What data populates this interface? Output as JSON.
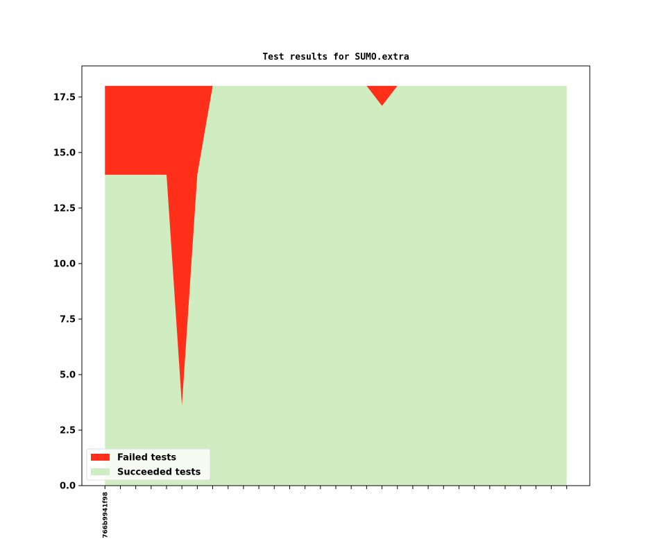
{
  "chart_data": {
    "type": "area",
    "title": "Test results for SUMO.extra",
    "xlabel": "",
    "ylabel": "",
    "ylim": [
      0,
      18.9
    ],
    "yticks": [
      0.0,
      2.5,
      5.0,
      7.5,
      10.0,
      12.5,
      15.0,
      17.5
    ],
    "ytick_labels": [
      "0.0",
      "2.5",
      "5.0",
      "7.5",
      "10.0",
      "12.5",
      "15.0",
      "17.5"
    ],
    "xlim": [
      -1.5,
      31.5
    ],
    "x": [
      0,
      1,
      2,
      3,
      4,
      5,
      6,
      7,
      8,
      9,
      10,
      11,
      12,
      13,
      14,
      15,
      16,
      17,
      18,
      19,
      20,
      21,
      22,
      23,
      24,
      25,
      26,
      27,
      28,
      29,
      30
    ],
    "xtick_labels": [
      "766b9941f98",
      "",
      "",
      "",
      "",
      "",
      "",
      "",
      "",
      "",
      "",
      "",
      "",
      "",
      "",
      "",
      "",
      "",
      "",
      "",
      "",
      "",
      "",
      "",
      "",
      "",
      "",
      "",
      "",
      "",
      ""
    ],
    "series": [
      {
        "name": "Succeeded tests",
        "color": "#cfedc0",
        "values": [
          14,
          14,
          14,
          14,
          14,
          3.6,
          14,
          18,
          18,
          18,
          18,
          18,
          18,
          18,
          18,
          18,
          18,
          18,
          17.1,
          18,
          18,
          18,
          18,
          18,
          18,
          18,
          18,
          18,
          18,
          18,
          18
        ]
      },
      {
        "name": "Failed tests",
        "color": "#ff2f1a",
        "values": [
          4,
          4,
          4,
          4,
          4,
          14.4,
          4,
          0,
          0,
          0,
          0,
          0,
          0,
          0,
          0,
          0,
          0,
          0,
          0.9,
          0,
          0,
          0,
          0,
          0,
          0,
          0,
          0,
          0,
          0,
          0,
          0
        ]
      }
    ],
    "stacked": true,
    "legend": {
      "location": "lower-left",
      "entries": [
        "Failed tests",
        "Succeeded tests"
      ]
    },
    "grid": false
  }
}
